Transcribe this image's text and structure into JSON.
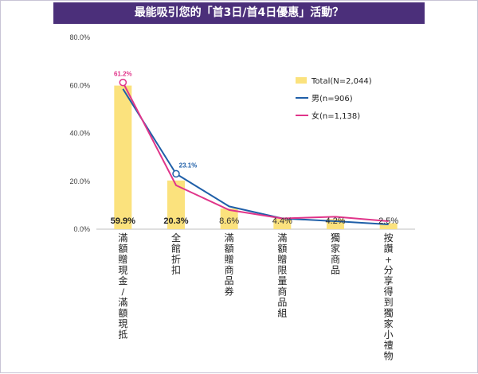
{
  "title": "最能吸引您的「首3日/首4日優惠」活動？",
  "chart_data": {
    "type": "bar",
    "categories": [
      "滿額贈現金/滿額現抵",
      "全館折扣",
      "滿額贈商品券",
      "滿額贈限量商品組",
      "獨家商品",
      "按讚+分享得到獨家小禮物"
    ],
    "ylim": [
      0,
      0.8
    ],
    "y_ticks": [
      "0.0%",
      "20.0%",
      "40.0%",
      "60.0%",
      "80.0%"
    ],
    "series": [
      {
        "name": "Total(N=2,044)",
        "kind": "bar",
        "color": "#fbe27d",
        "values": [
          0.599,
          0.203,
          0.086,
          0.044,
          0.042,
          0.025
        ],
        "labels": [
          "59.9%",
          "20.3%",
          "8.6%",
          "4.4%",
          "4.2%",
          "2.5%"
        ]
      },
      {
        "name": "男(n=906)",
        "kind": "line",
        "color": "#1f5fa8",
        "values": [
          0.585,
          0.231,
          0.095,
          0.045,
          0.033,
          0.02
        ],
        "point_labels": [
          "",
          "23.1%",
          "",
          "",
          "",
          ""
        ]
      },
      {
        "name": "女(n=1,138)",
        "kind": "line",
        "color": "#e0358a",
        "values": [
          0.612,
          0.183,
          0.08,
          0.045,
          0.052,
          0.033
        ],
        "point_labels": [
          "61.2%",
          "",
          "",
          "",
          "",
          ""
        ]
      }
    ],
    "legend_position": "top-right",
    "grid": false
  }
}
